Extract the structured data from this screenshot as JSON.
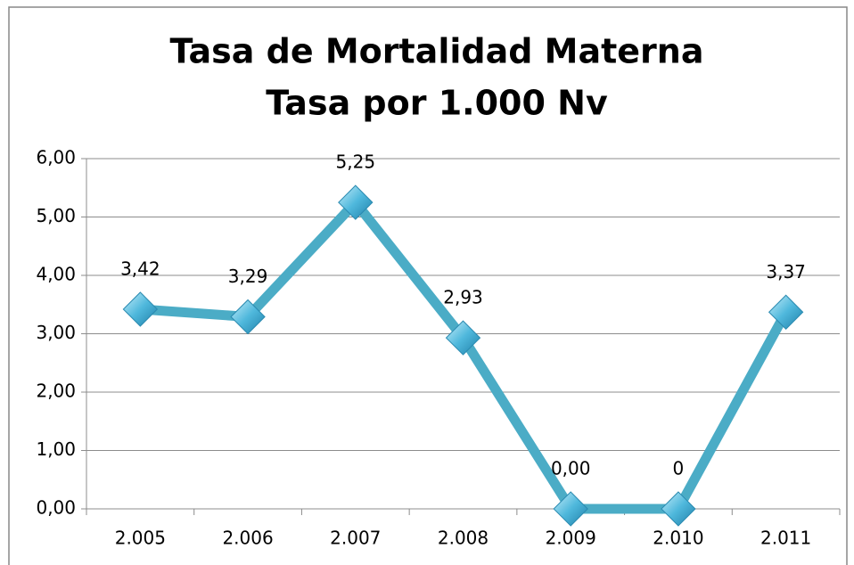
{
  "chart_data": {
    "type": "line",
    "title": "Tasa de Mortalidad Materna",
    "subtitle": "Tasa por 1.000 Nv",
    "categories": [
      "2.005",
      "2.006",
      "2.007",
      "2.008",
      "2.009",
      "2.010",
      "2.011"
    ],
    "series": [
      {
        "color": "#4bacc6",
        "values": [
          3.42,
          3.29,
          5.25,
          2.93,
          0,
          0,
          3.37
        ],
        "value_labels": [
          "3,42",
          "3,29",
          "5,25",
          "2,93",
          "0,00",
          "0",
          "3,37"
        ]
      }
    ],
    "ylim": [
      0,
      6
    ],
    "yticks": [
      {
        "value": 0,
        "label": "0,00"
      },
      {
        "value": 1,
        "label": "1,00"
      },
      {
        "value": 2,
        "label": "2,00"
      },
      {
        "value": 3,
        "label": "3,00"
      },
      {
        "value": 4,
        "label": "4,00"
      },
      {
        "value": 5,
        "label": "5,00"
      },
      {
        "value": 6,
        "label": "6,00"
      }
    ],
    "grid": true
  }
}
